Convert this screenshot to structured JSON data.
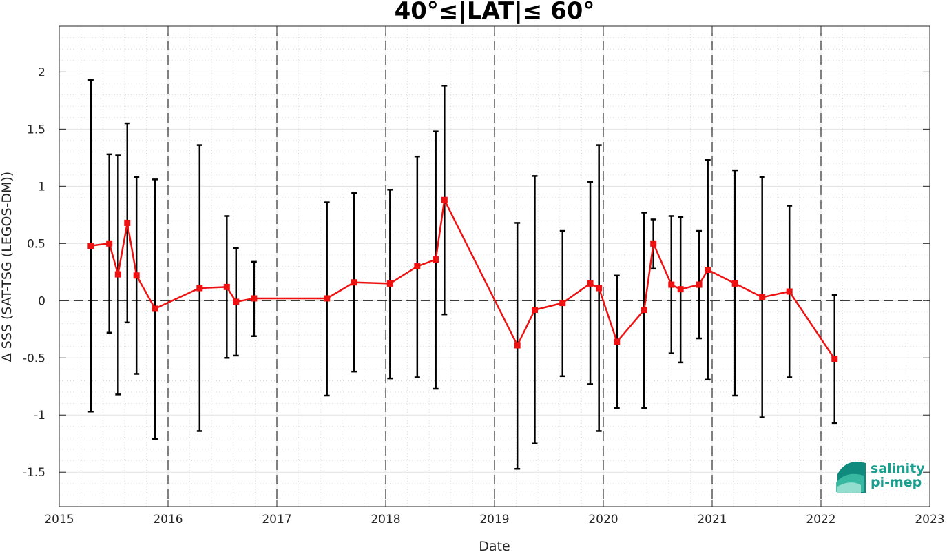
{
  "chart_data": {
    "type": "line",
    "title": "40°≤|LAT|≤ 60°",
    "xlabel": "Date",
    "ylabel": "Δ SSS (SAT-TSG (LEGOS-DM))",
    "xlim": [
      2015,
      2023
    ],
    "ylim": [
      -1.8,
      2.4
    ],
    "xticks": [
      "2015",
      "2016",
      "2017",
      "2018",
      "2019",
      "2020",
      "2021",
      "2022",
      "2023"
    ],
    "yticks": [
      "-1.5",
      "-1",
      "-0.5",
      "0",
      "0.5",
      "1",
      "1.5",
      "2"
    ],
    "grid": true,
    "zero_line": true,
    "year_separators": [
      2016,
      2017,
      2018,
      2019,
      2020,
      2021,
      2022
    ],
    "colors": {
      "series": "#ee1111",
      "errorbar": "#000000"
    },
    "series": [
      {
        "x": [
          2015.29,
          2015.46,
          2015.54,
          2015.625,
          2015.71,
          2015.88,
          2016.29,
          2016.54,
          2016.625,
          2016.79,
          2017.46,
          2017.71,
          2018.04,
          2018.29,
          2018.46,
          2018.54,
          2019.21,
          2019.37,
          2019.625,
          2019.88,
          2019.96,
          2020.125,
          2020.375,
          2020.46,
          2020.625,
          2020.71,
          2020.88,
          2020.96,
          2021.21,
          2021.46,
          2021.71,
          2022.125
        ],
        "y": [
          0.48,
          0.5,
          0.23,
          0.68,
          0.22,
          -0.07,
          0.11,
          0.12,
          -0.01,
          0.02,
          0.02,
          0.16,
          0.15,
          0.3,
          0.36,
          0.88,
          -0.39,
          -0.08,
          -0.02,
          0.15,
          0.11,
          -0.36,
          -0.08,
          0.5,
          0.14,
          0.1,
          0.14,
          0.27,
          0.15,
          0.03,
          0.08,
          -0.51
        ],
        "err_low": [
          -0.97,
          -0.28,
          -0.82,
          -0.19,
          -0.64,
          -1.21,
          -1.14,
          -0.5,
          -0.48,
          -0.31,
          -0.83,
          -0.62,
          -0.68,
          -0.67,
          -0.77,
          -0.12,
          -1.47,
          -1.25,
          -0.66,
          -0.73,
          -1.14,
          -0.94,
          -0.94,
          0.28,
          -0.46,
          -0.54,
          -0.33,
          -0.69,
          -0.83,
          -1.02,
          -0.67,
          -1.07
        ],
        "err_high": [
          1.93,
          1.28,
          1.27,
          1.55,
          1.08,
          1.06,
          1.36,
          0.74,
          0.46,
          0.34,
          0.86,
          0.94,
          0.97,
          1.26,
          1.48,
          1.88,
          0.68,
          1.09,
          0.61,
          1.04,
          1.36,
          0.22,
          0.77,
          0.71,
          0.74,
          0.73,
          0.61,
          1.23,
          1.14,
          1.08,
          0.83,
          0.05
        ]
      }
    ]
  },
  "logo": {
    "line1": "salinity",
    "line2": "pi-mep"
  }
}
